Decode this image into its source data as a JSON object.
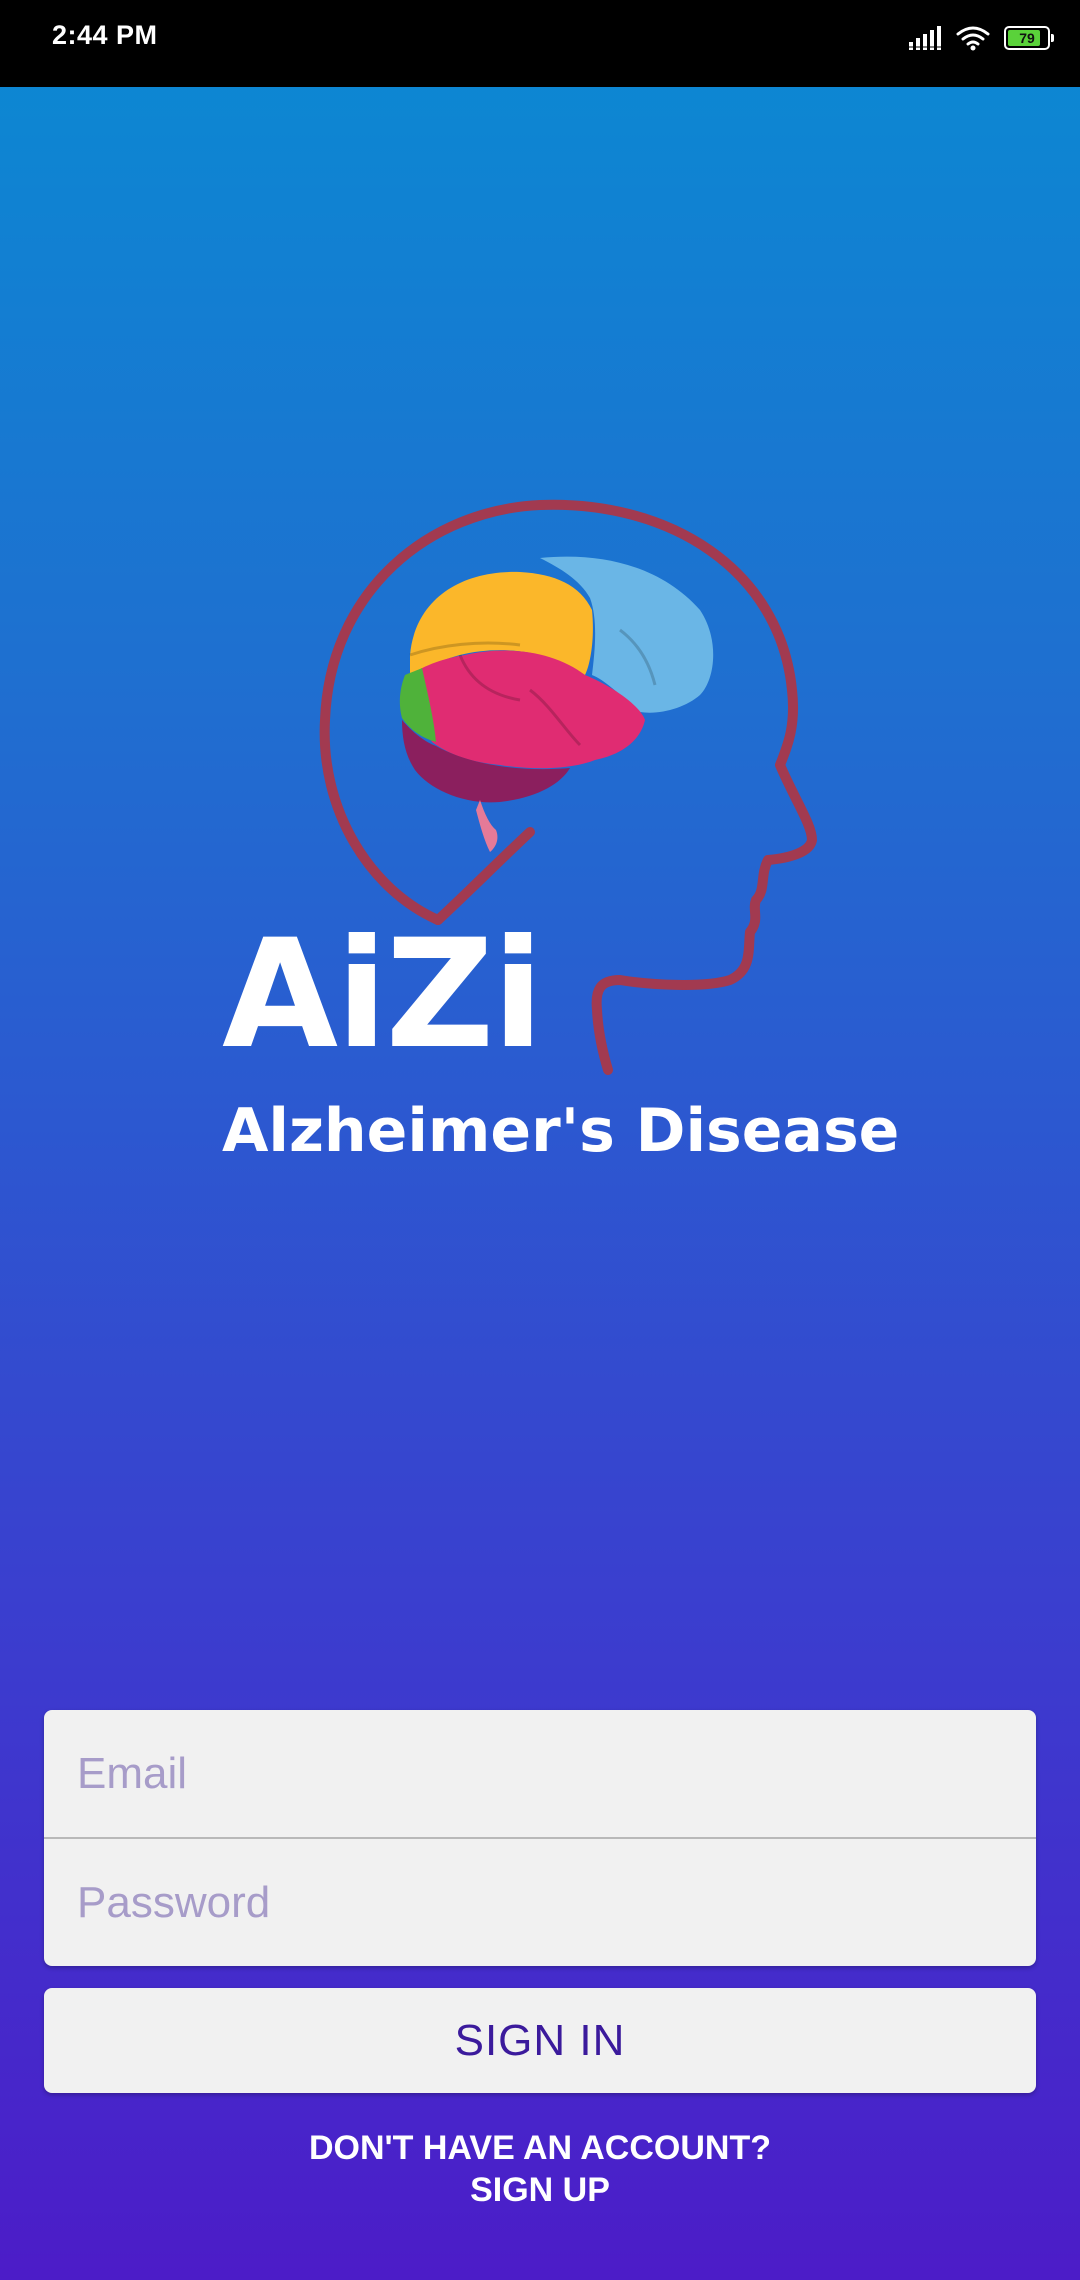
{
  "status_bar": {
    "time": "2:44 PM",
    "battery_level": "79",
    "icons": [
      "signal-icon",
      "wifi-icon",
      "battery-icon"
    ]
  },
  "logo": {
    "brand_name": "AiZi",
    "tagline": "Alzheimer's Disease",
    "icon": "head-brain-logo"
  },
  "form": {
    "email_placeholder": "Email",
    "password_placeholder": "Password",
    "signin_label": "SIGN IN"
  },
  "signup": {
    "line1": "DON'T HAVE AN ACCOUNT?",
    "line2": "SIGN UP"
  },
  "colors": {
    "gradient_top": "#0a8ad3",
    "gradient_bottom": "#4c1cc8",
    "button_text": "#3b1a9c",
    "placeholder": "#a79cc9",
    "logo_outline": "#a23a50"
  }
}
